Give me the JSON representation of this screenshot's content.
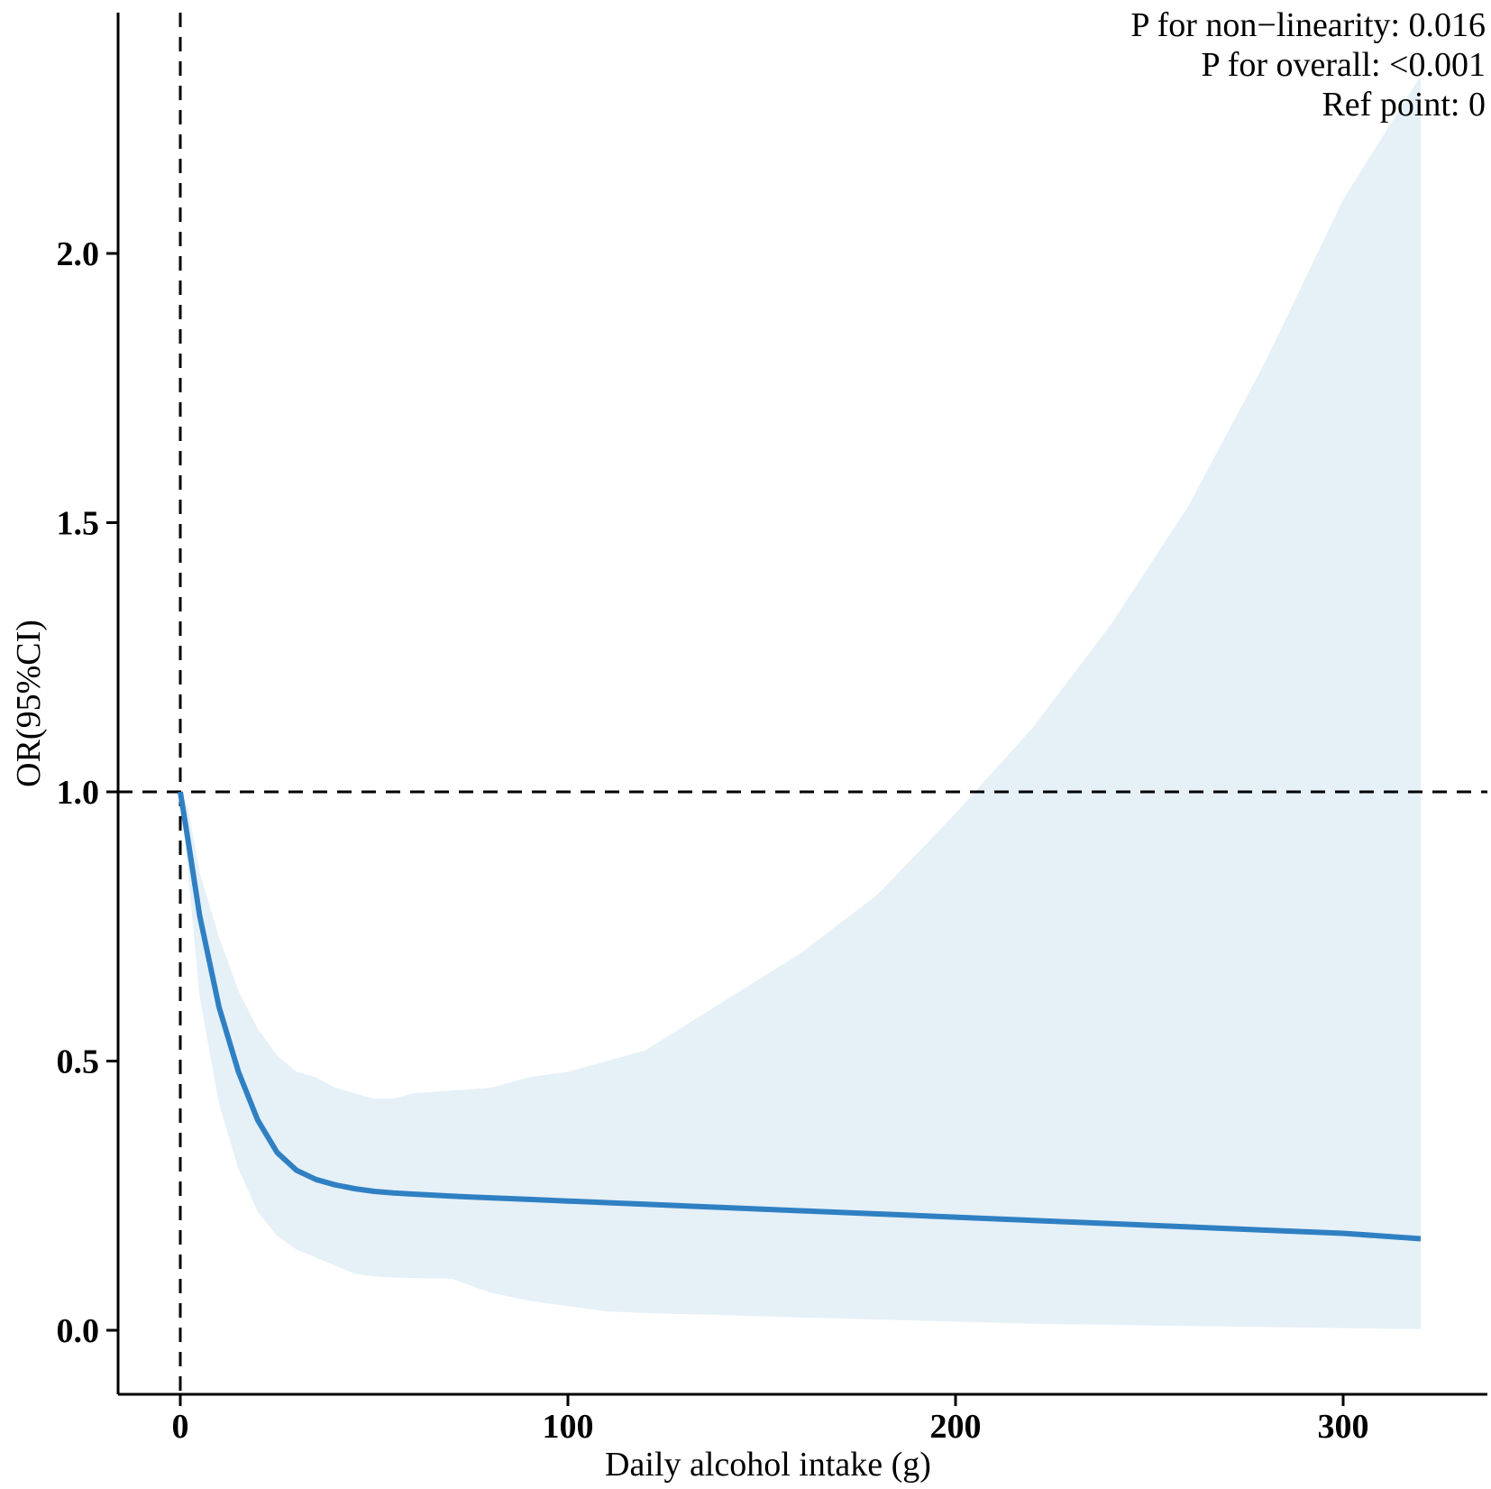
{
  "chart_data": {
    "type": "line",
    "title": "",
    "xlabel": "Daily alcohol intake (g)",
    "ylabel": "OR(95%CI)",
    "xlim": [
      -16,
      336
    ],
    "ylim": [
      -0.11,
      2.32
    ],
    "xticks": [
      0,
      100,
      200,
      300
    ],
    "xtick_labels": [
      "0",
      "100",
      "200",
      "300"
    ],
    "yticks": [
      0.0,
      0.5,
      1.0,
      1.5,
      2.0
    ],
    "ytick_labels": [
      "0.0",
      "0.5",
      "1.0",
      "1.5",
      "2.0"
    ],
    "grid": false,
    "reference_lines": {
      "x": 0,
      "y": 1.0
    },
    "annotations": [
      "P for non−linearity:  0.016",
      "P for overall:  <0.001",
      "Ref point:  0"
    ],
    "colors": {
      "line": "#2f80c3",
      "band": "#e6f0f7",
      "ref_line": "#000000"
    },
    "series": [
      {
        "x": [
          0,
          2,
          5,
          10,
          15,
          20,
          25,
          30,
          35,
          40,
          45,
          50,
          55,
          60,
          70,
          80,
          90,
          100,
          110,
          120,
          140,
          160,
          180,
          200,
          220,
          240,
          260,
          280,
          300,
          320
        ],
        "y": [
          1.0,
          0.91,
          0.77,
          0.6,
          0.48,
          0.39,
          0.33,
          0.297,
          0.28,
          0.27,
          0.263,
          0.258,
          0.255,
          0.253,
          0.249,
          0.246,
          0.243,
          0.24,
          0.237,
          0.234,
          0.228,
          0.222,
          0.216,
          0.21,
          0.204,
          0.198,
          0.192,
          0.186,
          0.18,
          0.17
        ],
        "lower": [
          1.0,
          0.85,
          0.62,
          0.42,
          0.3,
          0.22,
          0.175,
          0.15,
          0.135,
          0.12,
          0.105,
          0.1,
          0.098,
          0.097,
          0.096,
          0.07,
          0.055,
          0.045,
          0.035,
          0.032,
          0.028,
          0.024,
          0.02,
          0.016,
          0.012,
          0.01,
          0.008,
          0.006,
          0.004,
          0.002
        ],
        "upper": [
          1.0,
          0.97,
          0.85,
          0.73,
          0.63,
          0.56,
          0.51,
          0.48,
          0.47,
          0.45,
          0.44,
          0.43,
          0.43,
          0.44,
          0.445,
          0.45,
          0.47,
          0.48,
          0.5,
          0.52,
          0.61,
          0.7,
          0.81,
          0.96,
          1.12,
          1.31,
          1.53,
          1.8,
          2.1,
          2.33
        ]
      }
    ]
  }
}
